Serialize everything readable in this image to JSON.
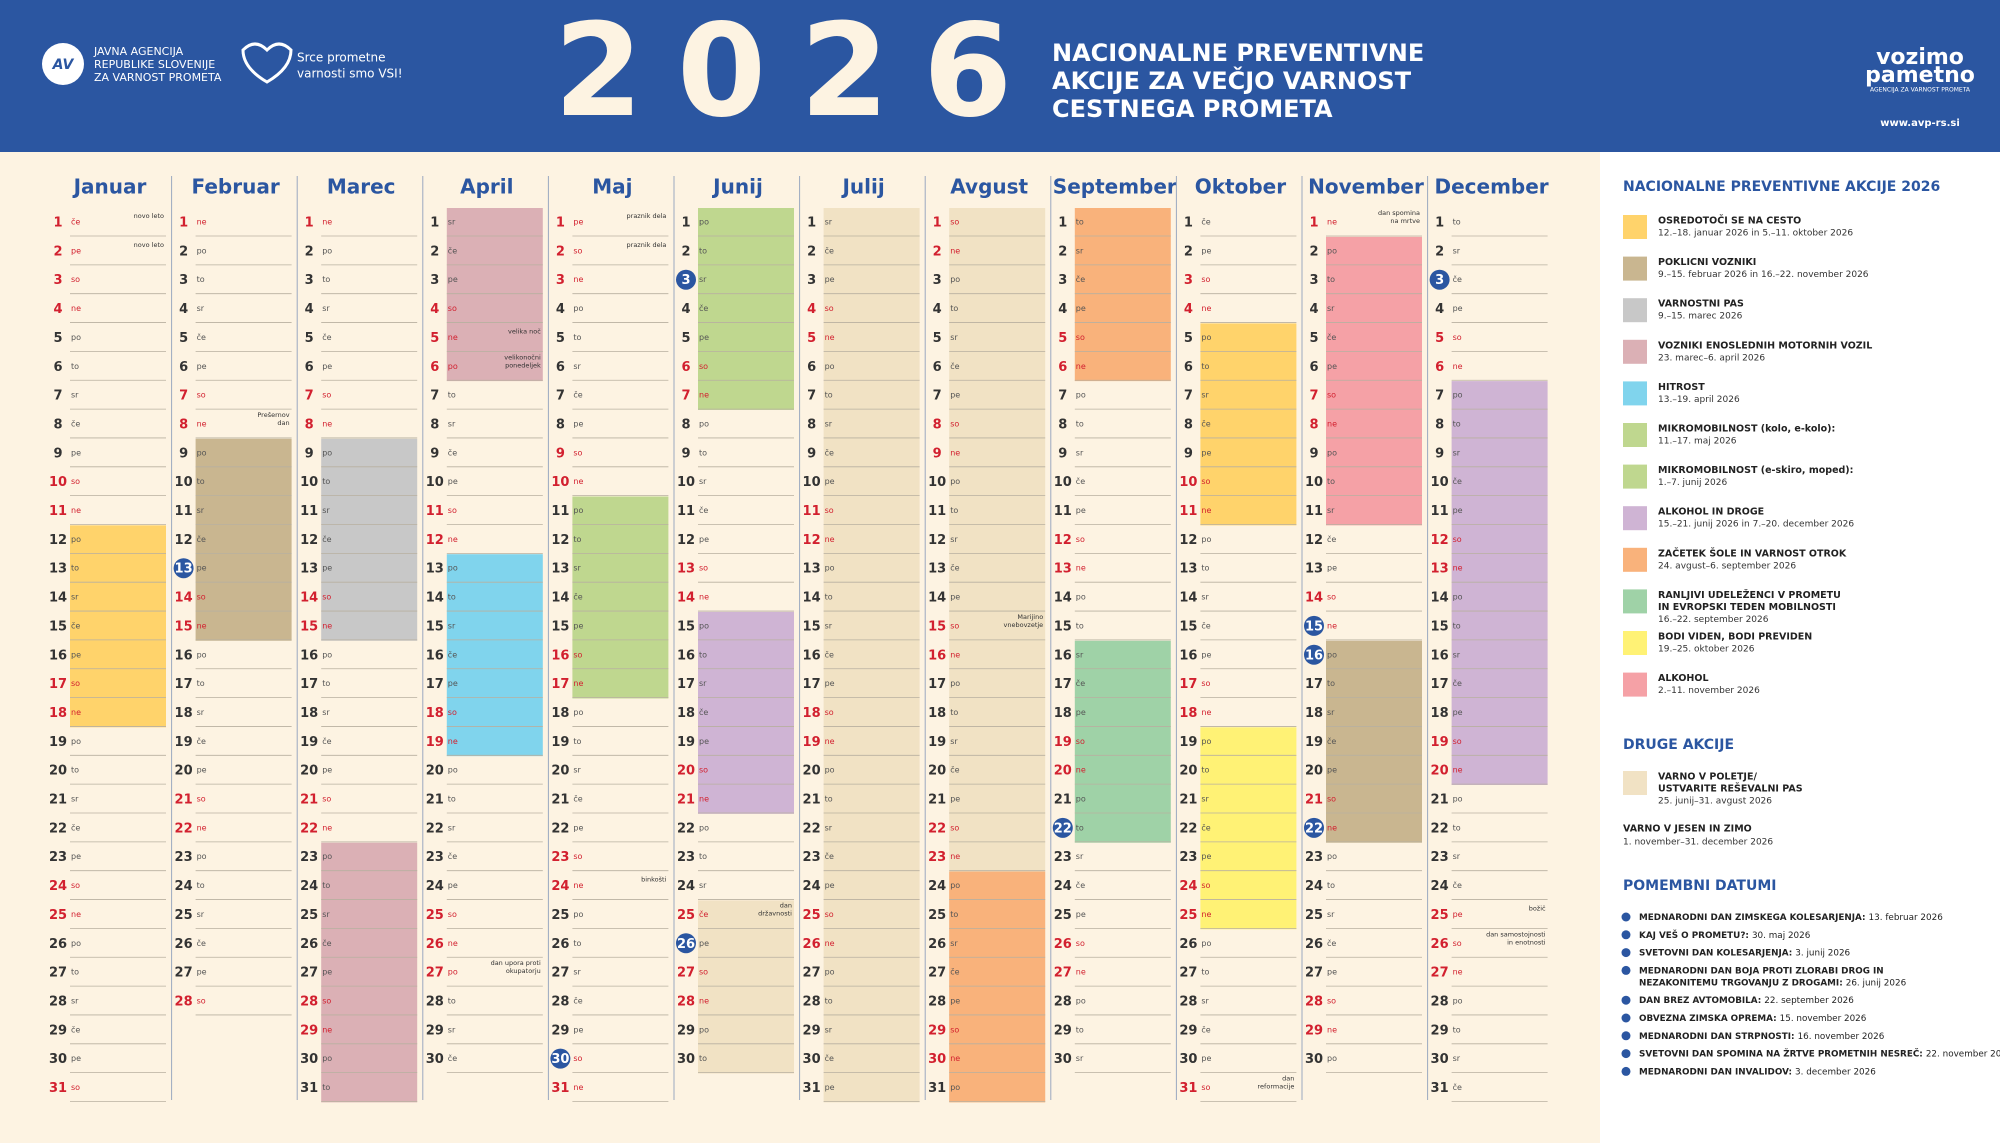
{
  "header": {
    "agency": [
      "JAVNA AGENCIJA",
      "REPUBLIKE SLOVENIJE",
      "ZA VARNOST PROMETA"
    ],
    "slogan": [
      "Srce prometne",
      "varnosti smo VSI!"
    ],
    "year": "2026",
    "title": [
      "NACIONALNE PREVENTIVNE",
      "AKCIJE ZA VEČJO VARNOST",
      "CESTNEGA PROMETA"
    ],
    "brand": [
      "vozimo",
      "pametno"
    ],
    "brand_sub": "AGENCIJA ZA VARNOST PROMETA",
    "url": "www.avp-rs.si"
  },
  "calendar": {
    "weekdays": [
      "po",
      "to",
      "sr",
      "če",
      "pe",
      "so",
      "ne"
    ],
    "days": [
      1,
      2,
      3,
      4,
      5,
      6,
      7,
      8,
      9,
      10,
      11,
      12,
      13,
      14,
      15,
      16,
      17,
      18,
      19,
      20,
      21,
      22,
      23,
      24,
      25,
      26,
      27,
      28,
      29,
      30,
      31
    ],
    "months": [
      {
        "name": "Januar",
        "length": 31,
        "first_weekday": 3,
        "holidays": [
          {
            "day": 1,
            "note": [
              "novo leto"
            ]
          },
          {
            "day": 2,
            "note": [
              "novo leto"
            ]
          }
        ]
      },
      {
        "name": "Februar",
        "length": 28,
        "first_weekday": 6,
        "holidays": [
          {
            "day": 8,
            "note": [
              "Prešernov",
              "dan"
            ]
          }
        ]
      },
      {
        "name": "Marec",
        "length": 31,
        "first_weekday": 6,
        "holidays": []
      },
      {
        "name": "April",
        "length": 30,
        "first_weekday": 2,
        "holidays": [
          {
            "day": 5,
            "note": [
              "velika noč"
            ]
          },
          {
            "day": 6,
            "note": [
              "velikonočni",
              "ponedeljek"
            ]
          },
          {
            "day": 27,
            "note": [
              "dan upora proti",
              "okupatorju"
            ]
          }
        ]
      },
      {
        "name": "Maj",
        "length": 31,
        "first_weekday": 4,
        "holidays": [
          {
            "day": 1,
            "note": [
              "praznik dela"
            ]
          },
          {
            "day": 2,
            "note": [
              "praznik dela"
            ]
          },
          {
            "day": 24,
            "note": [
              "binkošti"
            ]
          }
        ]
      },
      {
        "name": "Junij",
        "length": 30,
        "first_weekday": 0,
        "holidays": [
          {
            "day": 25,
            "note": [
              "dan",
              "državnosti"
            ]
          }
        ]
      },
      {
        "name": "Julij",
        "length": 31,
        "first_weekday": 2,
        "holidays": []
      },
      {
        "name": "Avgust",
        "length": 31,
        "first_weekday": 5,
        "holidays": [
          {
            "day": 15,
            "note": [
              "Marijino",
              "vnebovzetje"
            ]
          }
        ]
      },
      {
        "name": "September",
        "length": 30,
        "first_weekday": 1,
        "holidays": []
      },
      {
        "name": "Oktober",
        "length": 31,
        "first_weekday": 3,
        "holidays": [
          {
            "day": 31,
            "note": [
              "dan",
              "reformacije"
            ]
          }
        ]
      },
      {
        "name": "November",
        "length": 30,
        "first_weekday": 6,
        "holidays": [
          {
            "day": 1,
            "note": [
              "dan spomina",
              "na mrtve"
            ]
          }
        ]
      },
      {
        "name": "December",
        "length": 31,
        "first_weekday": 1,
        "holidays": [
          {
            "day": 25,
            "note": [
              "božič"
            ]
          },
          {
            "day": 26,
            "note": [
              "dan samostojnosti",
              "in enotnosti"
            ]
          }
        ]
      }
    ]
  },
  "campaigns": {
    "title": "NACIONALNE PREVENTIVNE AKCIJE 2026",
    "items": [
      {
        "name": [
          "OSREDOTOČI SE NA CESTO"
        ],
        "dates": "12.–18. januar 2026 in 5.–11. oktober 2026",
        "color": "#ffd36b",
        "ranges": [
          [
            1,
            12,
            18
          ],
          [
            10,
            5,
            11
          ]
        ]
      },
      {
        "name": [
          "POKLICNI VOZNIKI"
        ],
        "dates": "9.–15. februar 2026 in 16.–22. november 2026",
        "color": "#c9b690",
        "ranges": [
          [
            2,
            9,
            15
          ],
          [
            11,
            16,
            22
          ]
        ]
      },
      {
        "name": [
          "VARNOSTNI PAS"
        ],
        "dates": "9.–15. marec 2026",
        "color": "#c8c8c8",
        "ranges": [
          [
            3,
            9,
            15
          ]
        ]
      },
      {
        "name": [
          "VOZNIKI ENOSLEDNIH MOTORNIH VOZIL"
        ],
        "dates": "23. marec–6. april 2026",
        "color": "#dbb0b5",
        "ranges": [
          [
            3,
            23,
            31
          ],
          [
            4,
            1,
            6
          ]
        ]
      },
      {
        "name": [
          "HITROST"
        ],
        "dates": "13.–19. april 2026",
        "color": "#80d4ed",
        "ranges": [
          [
            4,
            13,
            19
          ]
        ]
      },
      {
        "name": [
          "MIKROMOBILNOST (kolo, e-kolo):"
        ],
        "dates": "11.–17. maj 2026",
        "color": "#bfd78f",
        "ranges": [
          [
            5,
            11,
            17
          ]
        ]
      },
      {
        "name": [
          "MIKROMOBILNOST (e-skiro, moped):"
        ],
        "dates": "1.–7. junij 2026",
        "color": "#bfd78f",
        "ranges": [
          [
            6,
            1,
            7
          ]
        ]
      },
      {
        "name": [
          "ALKOHOL IN DROGE"
        ],
        "dates": "15.–21. junij 2026 in 7.–20. december 2026",
        "color": "#cfb4d4",
        "ranges": [
          [
            6,
            15,
            21
          ],
          [
            12,
            7,
            20
          ]
        ]
      },
      {
        "name": [
          "ZAČETEK ŠOLE IN VARNOST OTROK"
        ],
        "dates": "24. avgust–6. september 2026",
        "color": "#f9b27b",
        "ranges": [
          [
            8,
            24,
            31
          ],
          [
            9,
            1,
            6
          ]
        ]
      },
      {
        "name": [
          "RANLJIVI UDELEŽENCI V PROMETU",
          "IN EVROPSKI TEDEN MOBILNOSTI"
        ],
        "dates": "16.–22. september 2026",
        "color": "#9fd2a7",
        "ranges": [
          [
            9,
            16,
            22
          ]
        ]
      },
      {
        "name": [
          "BODI VIDEN, BODI PREVIDEN"
        ],
        "dates": "19.–25. oktober 2026",
        "color": "#fff275",
        "ranges": [
          [
            10,
            19,
            25
          ]
        ]
      },
      {
        "name": [
          "ALKOHOL"
        ],
        "dates": "2.–11. november 2026",
        "color": "#f5a1a6",
        "ranges": [
          [
            11,
            2,
            11
          ]
        ]
      }
    ]
  },
  "other": {
    "title": "DRUGE AKCIJE",
    "items": [
      {
        "name": [
          "VARNO V POLETJE/",
          "USTVARITE REŠEVALNI PAS"
        ],
        "dates": "25. junij–31. avgust 2026",
        "color": "#f1e2c4",
        "ranges": [
          [
            6,
            25,
            30
          ],
          [
            7,
            1,
            31
          ],
          [
            8,
            1,
            31
          ]
        ]
      },
      {
        "name": [
          "VARNO V JESEN IN ZIMO"
        ],
        "dates": "1. november–31. december 2026"
      }
    ]
  },
  "important": {
    "title": "POMEMBNI DATUMI",
    "items": [
      {
        "name": [
          "MEDNARODNI DAN ZIMSKEGA KOLESARJENJA:"
        ],
        "date": "13. februar 2026",
        "month": 2,
        "day": 13
      },
      {
        "name": [
          "KAJ VEŠ O PROMETU?:"
        ],
        "date": "30. maj 2026",
        "month": 5,
        "day": 30
      },
      {
        "name": [
          "SVETOVNI DAN KOLESARJENJA:"
        ],
        "date": "3. junij 2026",
        "month": 6,
        "day": 3
      },
      {
        "name": [
          "MEDNARODNI DAN BOJA PROTI ZLORABI DROG IN",
          "NEZAKONITEMU TRGOVANJU Z DROGAMI:"
        ],
        "date": "26. junij 2026",
        "month": 6,
        "day": 26
      },
      {
        "name": [
          "DAN BREZ AVTOMOBILA:"
        ],
        "date": "22. september 2026",
        "month": 9,
        "day": 22
      },
      {
        "name": [
          "OBVEZNA ZIMSKA OPREMA:"
        ],
        "date": "15. november 2026",
        "month": 11,
        "day": 15
      },
      {
        "name": [
          "MEDNARODNI DAN STRPNOSTI:"
        ],
        "date": "16. november 2026",
        "month": 11,
        "day": 16
      },
      {
        "name": [
          "SVETOVNI DAN SPOMINA NA ŽRTVE PROMETNIH NESREČ:"
        ],
        "date": "22. november 2026",
        "month": 11,
        "day": 22
      },
      {
        "name": [
          "MEDNARODNI DAN INVALIDOV:"
        ],
        "date": "3. december 2026",
        "month": 12,
        "day": 3
      }
    ]
  }
}
